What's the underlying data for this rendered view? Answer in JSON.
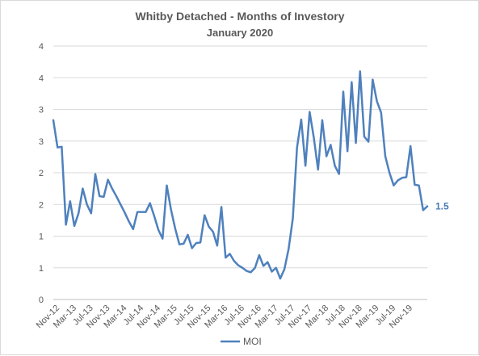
{
  "chart_data": {
    "type": "line",
    "title": "Whitby Detached - Months of Investory",
    "subtitle": "January 2020",
    "xlabel": "",
    "ylabel": "",
    "y_tick_labels": [
      "0",
      "1",
      "1",
      "2",
      "2",
      "3",
      "3",
      "4",
      "4"
    ],
    "ylim": [
      0,
      4
    ],
    "grid": true,
    "legend_position": "bottom",
    "line_color": "#4f81bd",
    "end_label": "1.5",
    "x_tick_labels": [
      "Nov-12",
      "Mar-13",
      "Jul-13",
      "Nov-13",
      "Mar-14",
      "Jul-14",
      "Nov-14",
      "Mar-15",
      "Jul-15",
      "Nov-15",
      "Mar-16",
      "Jul-16",
      "Nov-16",
      "Mar-17",
      "Jul-17",
      "Nov-17",
      "Mar-18",
      "Jul-18",
      "Nov-18",
      "Mar-19",
      "Jul-19",
      "Nov-19"
    ],
    "series": [
      {
        "name": "MOI",
        "values": [
          2.83,
          2.4,
          2.41,
          1.18,
          1.55,
          1.16,
          1.36,
          1.75,
          1.5,
          1.36,
          1.98,
          1.63,
          1.62,
          1.89,
          1.75,
          1.63,
          1.5,
          1.37,
          1.23,
          1.11,
          1.38,
          1.38,
          1.38,
          1.52,
          1.32,
          1.1,
          0.96,
          1.8,
          1.42,
          1.12,
          0.87,
          0.88,
          1.02,
          0.81,
          0.89,
          0.9,
          1.33,
          1.15,
          1.07,
          0.85,
          1.46,
          0.66,
          0.72,
          0.61,
          0.54,
          0.5,
          0.45,
          0.43,
          0.5,
          0.7,
          0.53,
          0.59,
          0.44,
          0.5,
          0.33,
          0.48,
          0.8,
          1.28,
          2.4,
          2.84,
          2.11,
          2.96,
          2.55,
          2.05,
          2.83,
          2.26,
          2.44,
          2.11,
          1.98,
          3.28,
          2.34,
          3.43,
          2.47,
          3.6,
          2.57,
          2.49,
          3.47,
          3.13,
          2.95,
          2.26,
          2.0,
          1.8,
          1.88,
          1.92,
          1.93,
          2.42,
          1.81,
          1.8,
          1.41,
          1.47
        ]
      }
    ]
  }
}
